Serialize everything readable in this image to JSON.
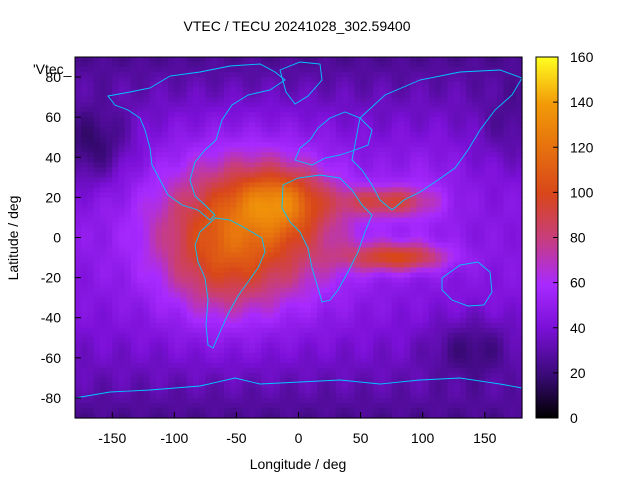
{
  "chart_data": {
    "type": "heatmap",
    "title": "VTEC / TECU 20241028_302.59400",
    "xlabel": "Longitude / deg",
    "ylabel": "Latitude / deg",
    "xlim": [
      -180,
      180
    ],
    "ylim": [
      -90,
      90
    ],
    "x_ticks": [
      -150,
      -100,
      -50,
      0,
      50,
      100,
      150
    ],
    "y_ticks": [
      -80,
      -60,
      -40,
      -20,
      0,
      20,
      40,
      60,
      80
    ],
    "colorbar": {
      "min": 0,
      "max": 160,
      "ticks": [
        0,
        20,
        40,
        60,
        80,
        100,
        120,
        140,
        160
      ],
      "palette": [
        "#000000",
        "#3a0a78",
        "#7b10d8",
        "#a82aff",
        "#c83e7a",
        "#d8461a",
        "#e6720e",
        "#f29a08",
        "#f8c810",
        "#ffff20"
      ]
    },
    "legend_text": "'Vtec_",
    "legend_position": "top-left",
    "coastline_color": "#00c8ff",
    "peak_value_approx": 125,
    "peak_location": {
      "lon": -5,
      "lat": 20
    }
  }
}
